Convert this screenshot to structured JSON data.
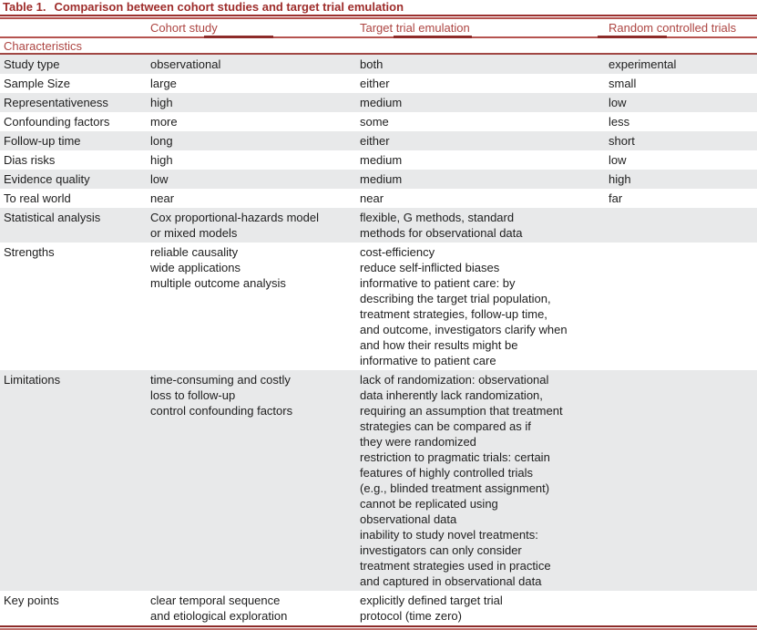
{
  "table": {
    "title_label": "Table 1.",
    "title_text": "Comparison between cohort studies and target trial emulation",
    "columns": [
      "",
      "Cohort study",
      "Target trial emulation",
      "Random controlled trials"
    ],
    "section_header": "Characteristics",
    "rows": [
      {
        "label": "Study type",
        "cohort": "observational",
        "tte": "both",
        "rct": "experimental"
      },
      {
        "label": "Sample Size",
        "cohort": "large",
        "tte": "either",
        "rct": "small"
      },
      {
        "label": "Representativeness",
        "cohort": "high",
        "tte": "medium",
        "rct": "low"
      },
      {
        "label": "Confounding factors",
        "cohort": "more",
        "tte": "some",
        "rct": "less"
      },
      {
        "label": "Follow-up time",
        "cohort": "long",
        "tte": "either",
        "rct": "short"
      },
      {
        "label": "Dias risks",
        "cohort": "high",
        "tte": "medium",
        "rct": "low"
      },
      {
        "label": "Evidence quality",
        "cohort": "low",
        "tte": "medium",
        "rct": "high"
      },
      {
        "label": "To real world",
        "cohort": "near",
        "tte": "near",
        "rct": "far"
      },
      {
        "label": "Statistical analysis",
        "cohort": "Cox proportional-hazards model\nor mixed models",
        "tte": "flexible, G methods, standard\nmethods for observational data",
        "rct": ""
      },
      {
        "label": "Strengths",
        "cohort": "reliable causality\nwide applications\nmultiple outcome analysis",
        "tte": "cost-efficiency\nreduce self-inflicted biases\ninformative to patient care: by\ndescribing the target trial population,\ntreatment strategies, follow-up time,\nand outcome, investigators clarify when\nand how their results might be\ninformative to patient care",
        "rct": ""
      },
      {
        "label": "Limitations",
        "cohort": "time-consuming and costly\nloss to follow-up\ncontrol confounding factors",
        "tte": "lack of randomization: observational\ndata inherently lack randomization,\nrequiring an assumption that treatment\nstrategies can be compared as if\nthey were randomized\nrestriction to pragmatic trials: certain\nfeatures of highly controlled trials\n(e.g., blinded treatment assignment)\ncannot be replicated using\nobservational data\ninability to study novel treatments:\ninvestigators can only consider\ntreatment strategies used in practice\nand captured in observational data",
        "rct": ""
      },
      {
        "label": "Key points",
        "cohort": "clear temporal sequence\nand etiological exploration",
        "tte": "explicitly defined target trial\nprotocol (time zero)",
        "rct": ""
      }
    ],
    "colors": {
      "accent_red": "#9e2d2b",
      "rule_red": "#b5534f",
      "rule_red_dark": "#8d2b29",
      "stripe_gray": "#e8e9ea",
      "body_text": "#1e1e1e"
    }
  }
}
